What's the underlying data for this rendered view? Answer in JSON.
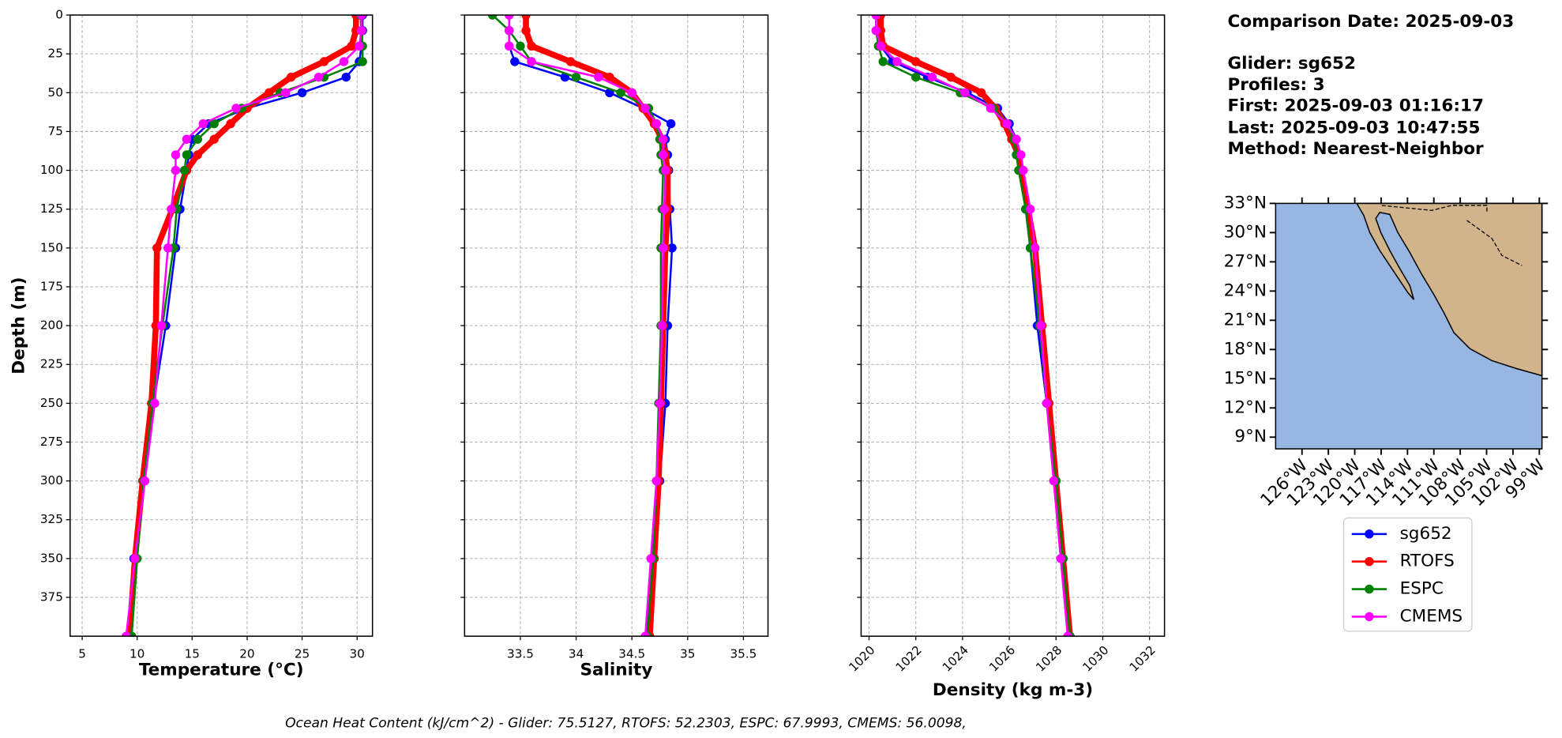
{
  "chart_data": [
    {
      "type": "line",
      "x_label": "Temperature (°C)",
      "y_label": "Depth (m)",
      "xlim": [
        3.9,
        31.4
      ],
      "xticks": [
        5,
        10,
        15,
        20,
        25,
        30
      ],
      "ylim": [
        0,
        400
      ],
      "y_inverted": true,
      "yticks": [
        0,
        25,
        50,
        75,
        100,
        125,
        150,
        175,
        200,
        225,
        250,
        275,
        300,
        325,
        350,
        375
      ],
      "grid": true,
      "y": [
        0,
        10,
        20,
        30,
        40,
        50,
        60,
        70,
        80,
        90,
        100,
        125,
        150,
        200,
        250,
        300,
        350,
        400
      ],
      "series": [
        {
          "name": "sg652",
          "color": "#0000ff",
          "width": 2,
          "values": [
            30.5,
            30.5,
            30.4,
            30.2,
            29,
            25,
            20,
            16.5,
            15,
            14.7,
            14.5,
            13.9,
            13.5,
            12.6,
            11.5,
            10.6,
            9.7,
            9.1
          ]
        },
        {
          "name": "RTOFS",
          "color": "#ff0000",
          "width": 6,
          "values": [
            29.9,
            29.9,
            29.5,
            27,
            24,
            22,
            20,
            18.5,
            17,
            15.5,
            14.5,
            13.2,
            11.8,
            11.7,
            11.3,
            10.5,
            9.8,
            9.3
          ]
        },
        {
          "name": "ESPC",
          "color": "#008000",
          "width": 2,
          "values": [
            30.3,
            30.4,
            30.5,
            30.5,
            27,
            23,
            19.5,
            17,
            15.5,
            14.5,
            14.3,
            13.6,
            13.3,
            12.3,
            11.4,
            10.6,
            10.0,
            9.5
          ]
        },
        {
          "name": "CMEMS",
          "color": "#ff00ff",
          "width": 2,
          "values": [
            30.4,
            30.4,
            30.2,
            28.8,
            26.5,
            23.5,
            19,
            16,
            14.5,
            13.5,
            13.5,
            13.1,
            12.8,
            12.2,
            11.6,
            10.7,
            9.8,
            9.0
          ]
        }
      ]
    },
    {
      "type": "line",
      "x_label": "Salinity",
      "xlim": [
        33.0,
        35.72
      ],
      "xticks": [
        33.5,
        34.0,
        34.5,
        35.0,
        35.5
      ],
      "ylim": [
        0,
        400
      ],
      "y_inverted": true,
      "grid": true,
      "y": [
        0,
        10,
        20,
        30,
        40,
        50,
        60,
        70,
        80,
        90,
        100,
        125,
        150,
        200,
        250,
        300,
        350,
        400
      ],
      "series": [
        {
          "color": "#0000ff",
          "width": 2,
          "values": [
            33.4,
            33.4,
            33.4,
            33.45,
            33.9,
            34.3,
            34.6,
            34.85,
            34.8,
            34.82,
            34.83,
            34.84,
            34.86,
            34.82,
            34.8,
            34.75,
            34.7,
            34.63
          ]
        },
        {
          "color": "#ff0000",
          "width": 6,
          "values": [
            33.55,
            33.55,
            33.6,
            33.95,
            34.3,
            34.5,
            34.6,
            34.7,
            34.77,
            34.8,
            34.82,
            34.82,
            34.8,
            34.78,
            34.76,
            34.74,
            34.7,
            34.66
          ]
        },
        {
          "color": "#008000",
          "width": 2,
          "values": [
            33.25,
            33.4,
            33.5,
            33.6,
            34.0,
            34.4,
            34.65,
            34.72,
            34.75,
            34.76,
            34.78,
            34.77,
            34.76,
            34.76,
            34.74,
            34.72,
            34.69,
            34.64
          ]
        },
        {
          "color": "#ff00ff",
          "width": 2,
          "values": [
            33.4,
            33.4,
            33.4,
            33.6,
            34.2,
            34.5,
            34.62,
            34.72,
            34.78,
            34.78,
            34.8,
            34.79,
            34.78,
            34.77,
            34.75,
            34.72,
            34.67,
            34.62
          ]
        }
      ]
    },
    {
      "type": "line",
      "x_label": "Density (kg m-3)",
      "xlim": [
        1019.66,
        1032.64
      ],
      "xticks": [
        1020,
        1022,
        1024,
        1026,
        1028,
        1030,
        1032
      ],
      "ylim": [
        0,
        400
      ],
      "y_inverted": true,
      "grid": true,
      "y": [
        0,
        10,
        20,
        30,
        40,
        50,
        60,
        70,
        80,
        90,
        100,
        125,
        150,
        200,
        250,
        300,
        350,
        400
      ],
      "series": [
        {
          "color": "#0000ff",
          "width": 2,
          "values": [
            1020.4,
            1020.4,
            1020.5,
            1021,
            1022.5,
            1024.2,
            1025.5,
            1026,
            1026.3,
            1026.4,
            1026.45,
            1026.7,
            1026.9,
            1027.2,
            1027.6,
            1028,
            1028.3,
            1028.6
          ]
        },
        {
          "color": "#ff0000",
          "width": 6,
          "values": [
            1020.5,
            1020.5,
            1020.6,
            1022,
            1023.5,
            1024.8,
            1025.4,
            1025.8,
            1026.1,
            1026.4,
            1026.5,
            1026.8,
            1027.1,
            1027.4,
            1027.7,
            1028.0,
            1028.3,
            1028.6
          ]
        },
        {
          "color": "#008000",
          "width": 2,
          "values": [
            1020.3,
            1020.3,
            1020.4,
            1020.6,
            1022,
            1023.9,
            1025.3,
            1025.9,
            1026.2,
            1026.3,
            1026.4,
            1026.7,
            1026.9,
            1027.3,
            1027.6,
            1028,
            1028.3,
            1028.6
          ]
        },
        {
          "color": "#ff00ff",
          "width": 2,
          "values": [
            1020.3,
            1020.3,
            1020.5,
            1021.2,
            1022.7,
            1024.1,
            1025.2,
            1025.9,
            1026.3,
            1026.5,
            1026.6,
            1026.9,
            1027.1,
            1027.35,
            1027.6,
            1027.9,
            1028.2,
            1028.5
          ]
        }
      ]
    },
    {
      "type": "map",
      "xlim": [
        -129,
        -98.7
      ],
      "ylim": [
        7.8,
        33
      ],
      "xticks": [
        {
          "value": -126,
          "label": "126°W"
        },
        {
          "value": -123,
          "label": "123°W"
        },
        {
          "value": -120,
          "label": "120°W"
        },
        {
          "value": -117,
          "label": "117°W"
        },
        {
          "value": -114,
          "label": "114°W"
        },
        {
          "value": -111,
          "label": "111°W"
        },
        {
          "value": -108,
          "label": "108°W"
        },
        {
          "value": -105,
          "label": "105°W"
        },
        {
          "value": -102,
          "label": "102°W"
        },
        {
          "value": -99,
          "label": "99°W"
        }
      ],
      "yticks": [
        {
          "value": 9,
          "label": "9°N"
        },
        {
          "value": 12,
          "label": "12°N"
        },
        {
          "value": 15,
          "label": "15°N"
        },
        {
          "value": 18,
          "label": "18°N"
        },
        {
          "value": 21,
          "label": "21°N"
        },
        {
          "value": 24,
          "label": "24°N"
        },
        {
          "value": 27,
          "label": "27°N"
        },
        {
          "value": 30,
          "label": "30°N"
        },
        {
          "value": 33,
          "label": "33°N"
        }
      ]
    }
  ],
  "info": {
    "date": "Comparison Date: 2025-09-03",
    "glider": "Glider: sg652",
    "profiles": "Profiles: 3",
    "first": "First: 2025-09-03 01:16:17",
    "last": "Last: 2025-09-03 10:47:55",
    "method": "Method: Nearest-Neighbor"
  },
  "footnote": "Ocean Heat Content (kJ/cm^2) - Glider: 75.5127,  RTOFS: 52.2303,  ESPC: 67.9993,  CMEMS: 56.0098,"
}
